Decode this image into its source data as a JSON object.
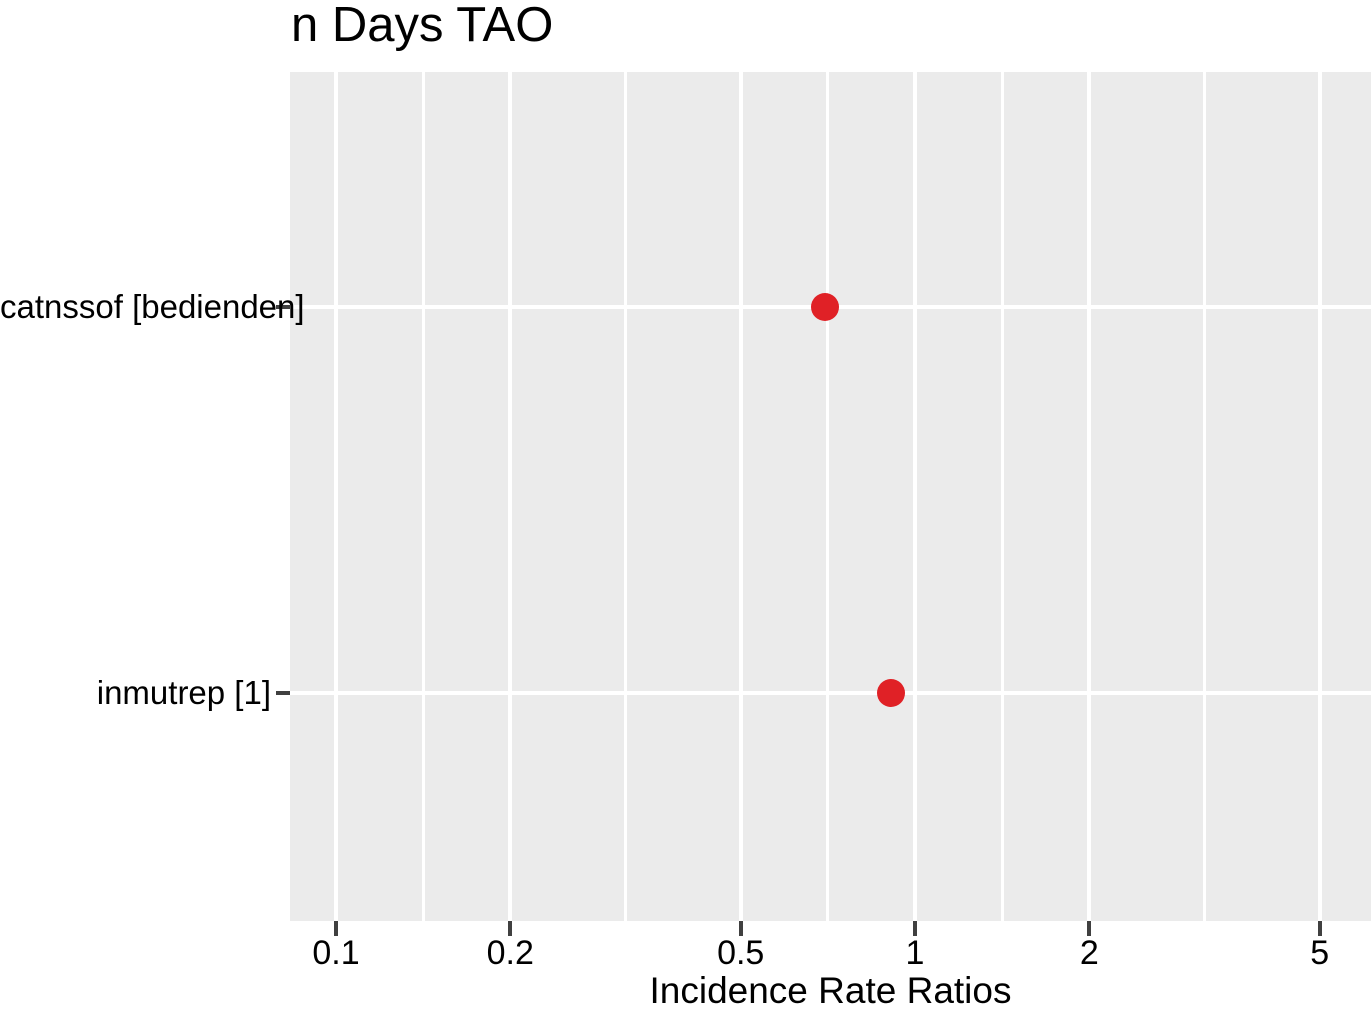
{
  "figure": {
    "title": "n Days TAO",
    "x_axis_title": "Incidence Rate Ratios"
  },
  "chart_data": {
    "type": "scatter",
    "subtype": "forest-dot-plot",
    "title": "n Days TAO",
    "xlabel": "Incidence Rate Ratios",
    "ylabel": "",
    "x_scale": "log10",
    "x_range": [
      0.083,
      6.15
    ],
    "x_ticks": [
      0.1,
      0.2,
      0.5,
      1,
      2,
      5
    ],
    "x_tick_labels": [
      "0.1",
      "0.2",
      "0.5",
      "1",
      "2",
      "5"
    ],
    "x_minor_breaks": [
      0.1414,
      0.3162,
      0.7071,
      1.4142,
      3.1623
    ],
    "grid": "on",
    "legend": "none",
    "categories": [
      "catnssof [bedienden]",
      "inmutrep [1]"
    ],
    "values": [
      0.7,
      0.91
    ],
    "series": [
      {
        "name": "Incidence Rate Ratios",
        "values": [
          0.7,
          0.91
        ]
      }
    ],
    "colors": {
      "point": "#e02126",
      "panel_background": "#ebebeb",
      "gridline": "#ffffff",
      "tick_mark": "#404040",
      "text": "#000000",
      "plot_background": "#ffffff"
    }
  }
}
